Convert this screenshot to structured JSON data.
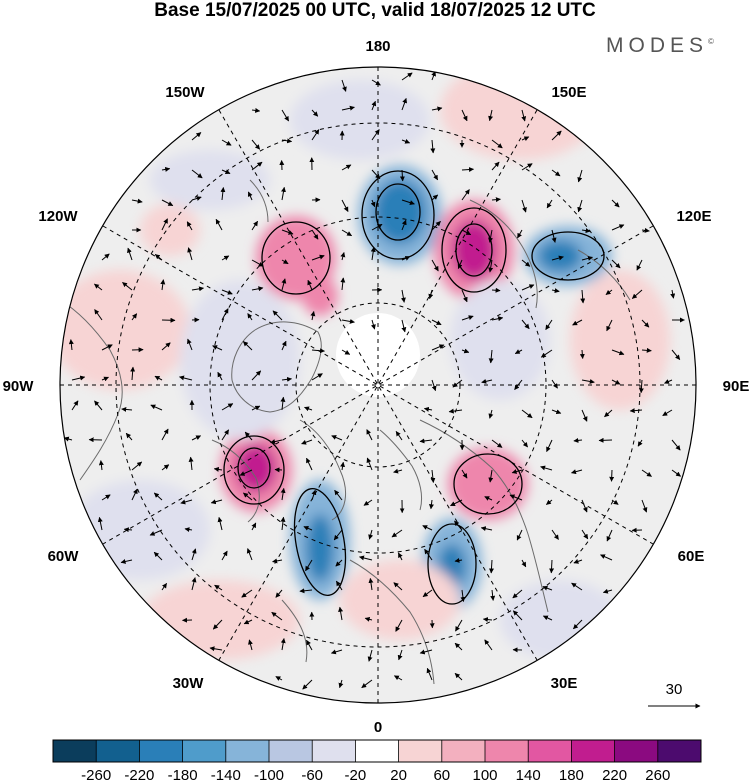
{
  "title": "Base 15/07/2025 00 UTC, valid 18/07/2025 12 UTC",
  "brand": "MODES",
  "brand_mark": "©",
  "longitude_labels": {
    "top": "180",
    "top_right": "150E",
    "right_upper": "120E",
    "right": "90E",
    "right_lower": "60E",
    "bottom_right": "30E",
    "bottom": "0",
    "bottom_left": "30W",
    "left_lower": "60W",
    "left": "90W",
    "left_upper": "120W",
    "top_left": "150W"
  },
  "reference_vector": {
    "label": "30"
  },
  "colorbar": {
    "ticks": [
      "-260",
      "-220",
      "-180",
      "-140",
      "-100",
      "-60",
      "-20",
      "20",
      "60",
      "100",
      "140",
      "180",
      "220",
      "260"
    ],
    "colors": [
      "#0b3d5c",
      "#12608f",
      "#2a7fb8",
      "#4f9ccb",
      "#86b4d9",
      "#b9c7e2",
      "#dfe0ee",
      "#ffffff",
      "#f7d4d4",
      "#f3b0bf",
      "#ee86ac",
      "#e257a2",
      "#c11d8f",
      "#8b0a80",
      "#4c0b6e"
    ]
  },
  "anomaly_colors": {
    "strong_positive": "#c11d8f",
    "positive": "#ee86ac",
    "weak_positive": "#f7d4d4",
    "strong_negative": "#2a7fb8",
    "negative": "#86b4d9",
    "weak_negative": "#dfe0ee",
    "neutral_land_fill": "#eeeeee",
    "coast": "#6b6b6b"
  }
}
